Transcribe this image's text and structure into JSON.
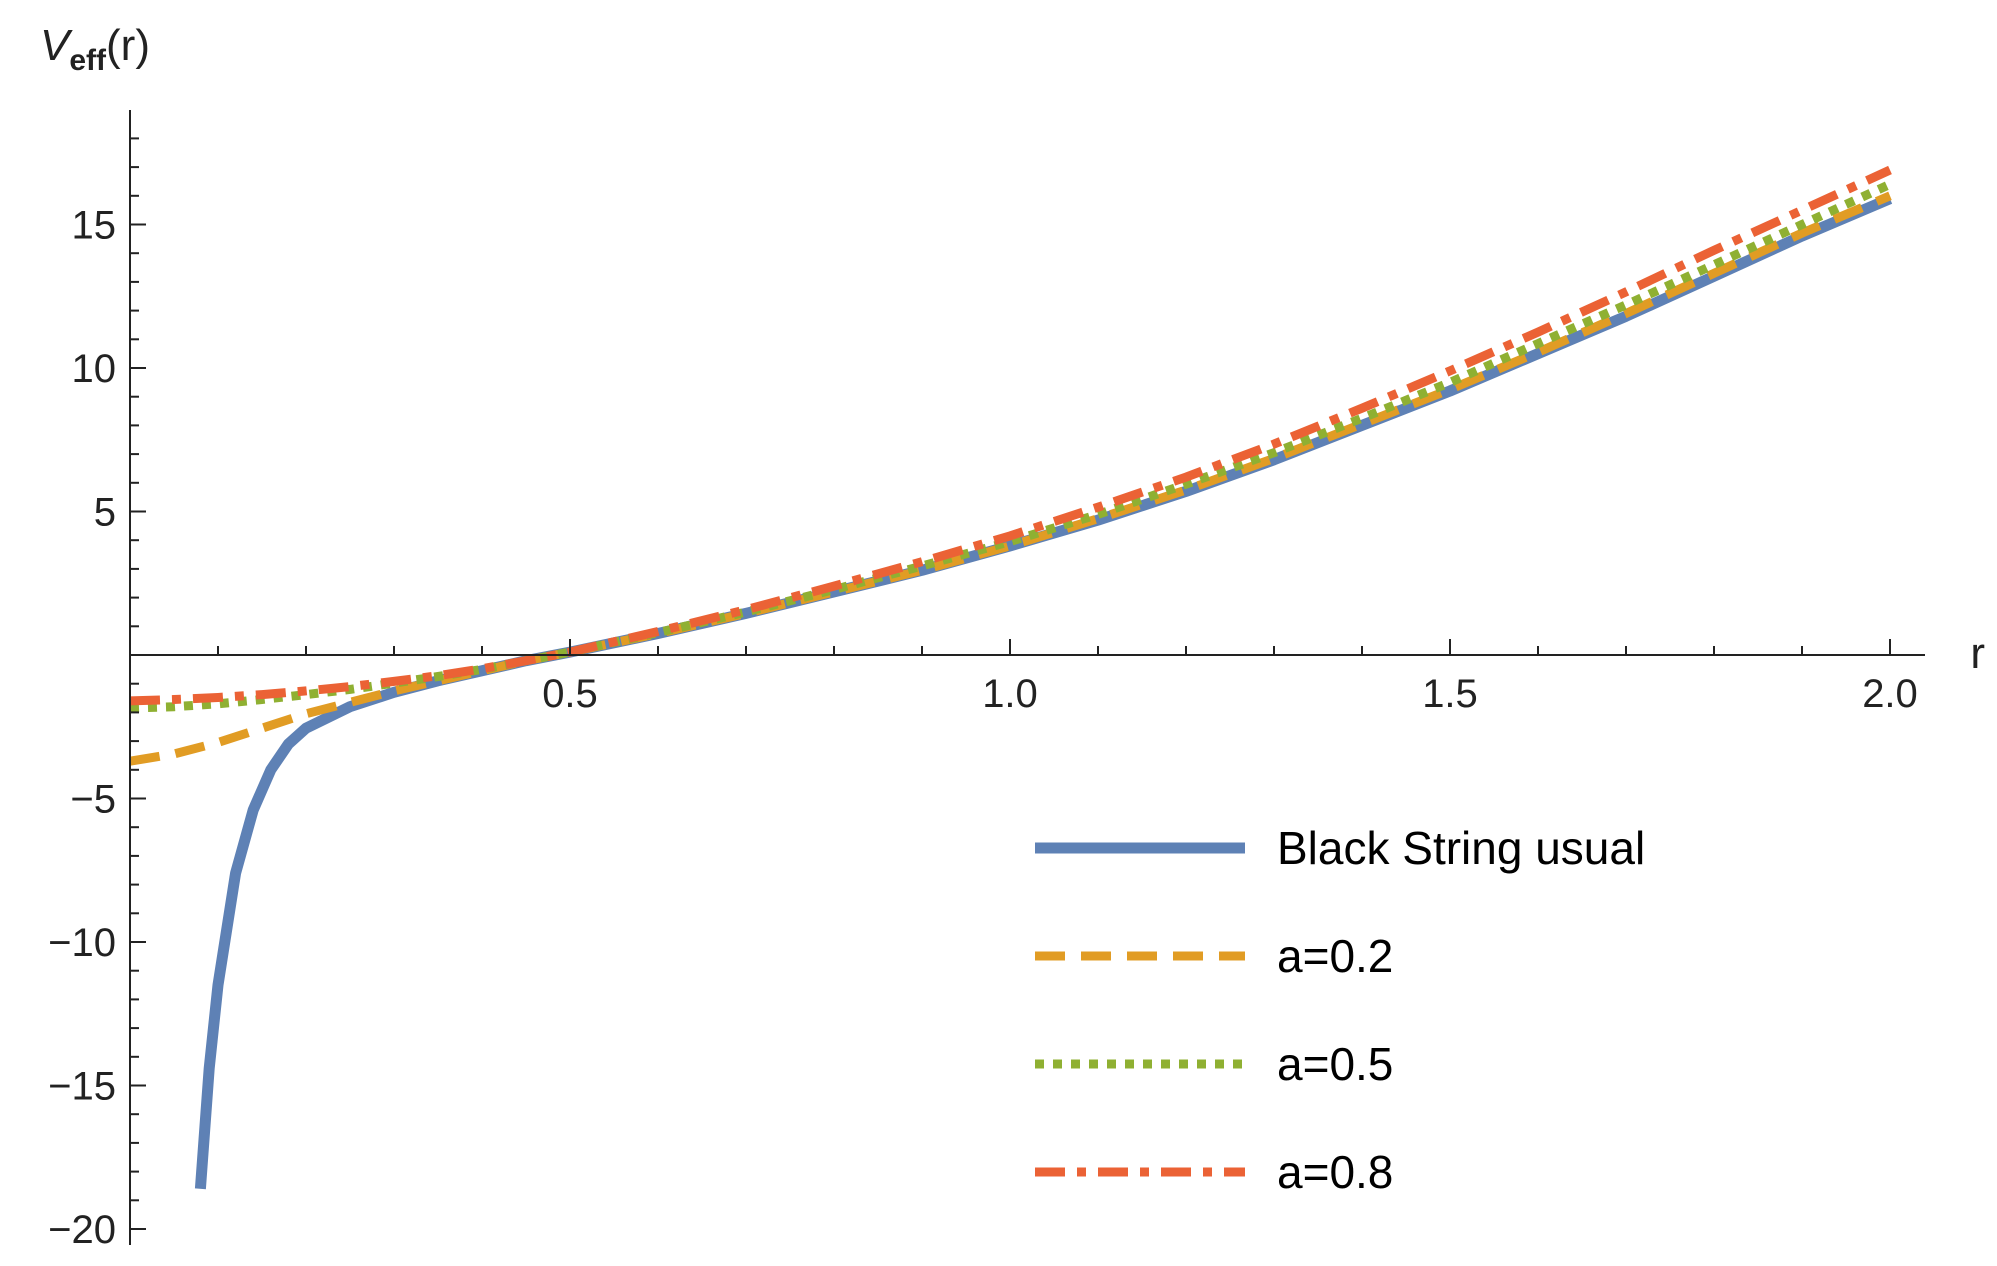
{
  "chart_data": {
    "type": "line",
    "xlabel": "r",
    "ylabel": {
      "base": "V",
      "subscript": "eff",
      "suffix": "(r)"
    },
    "xlim": [
      0.0,
      2.0
    ],
    "ylim": [
      -20,
      18
    ],
    "x_ticks": [
      {
        "value": 0.5,
        "label": "0.5"
      },
      {
        "value": 1.0,
        "label": "1.0"
      },
      {
        "value": 1.5,
        "label": "1.5"
      },
      {
        "value": 2.0,
        "label": "2.0"
      }
    ],
    "y_ticks": [
      {
        "value": -20,
        "label": "−20"
      },
      {
        "value": -15,
        "label": "−15"
      },
      {
        "value": -10,
        "label": "−10"
      },
      {
        "value": -5,
        "label": "−5"
      },
      {
        "value": 5,
        "label": "5"
      },
      {
        "value": 10,
        "label": "10"
      },
      {
        "value": 15,
        "label": "15"
      }
    ],
    "grid": false,
    "legend_position": "bottom-right",
    "series": [
      {
        "name": "Black String usual",
        "color": "#5E81B5",
        "dash": "solid",
        "points": [
          [
            0.08,
            -18.6
          ],
          [
            0.09,
            -14.4
          ],
          [
            0.1,
            -11.5
          ],
          [
            0.12,
            -7.6
          ],
          [
            0.14,
            -5.4
          ],
          [
            0.16,
            -4.0
          ],
          [
            0.18,
            -3.1
          ],
          [
            0.2,
            -2.55
          ],
          [
            0.25,
            -1.8
          ],
          [
            0.3,
            -1.3
          ],
          [
            0.35,
            -0.9
          ],
          [
            0.4,
            -0.55
          ],
          [
            0.45,
            -0.2
          ],
          [
            0.5,
            0.1
          ],
          [
            0.6,
            0.75
          ],
          [
            0.7,
            1.45
          ],
          [
            0.8,
            2.2
          ],
          [
            0.9,
            2.95
          ],
          [
            1.0,
            3.8
          ],
          [
            1.1,
            4.7
          ],
          [
            1.2,
            5.7
          ],
          [
            1.3,
            6.8
          ],
          [
            1.4,
            8.0
          ],
          [
            1.5,
            9.2
          ],
          [
            1.6,
            10.5
          ],
          [
            1.7,
            11.8
          ],
          [
            1.8,
            13.2
          ],
          [
            1.9,
            14.6
          ],
          [
            2.0,
            15.9
          ]
        ]
      },
      {
        "name": "a=0.2",
        "color": "#E19C24",
        "dash": "dashed",
        "points": [
          [
            0.0,
            -3.7
          ],
          [
            0.05,
            -3.45
          ],
          [
            0.1,
            -3.05
          ],
          [
            0.15,
            -2.55
          ],
          [
            0.2,
            -2.05
          ],
          [
            0.25,
            -1.65
          ],
          [
            0.3,
            -1.25
          ],
          [
            0.35,
            -0.9
          ],
          [
            0.4,
            -0.55
          ],
          [
            0.45,
            -0.2
          ],
          [
            0.5,
            0.1
          ],
          [
            0.6,
            0.75
          ],
          [
            0.7,
            1.45
          ],
          [
            0.8,
            2.2
          ],
          [
            0.9,
            2.95
          ],
          [
            1.0,
            3.8
          ],
          [
            1.1,
            4.75
          ],
          [
            1.2,
            5.75
          ],
          [
            1.3,
            6.85
          ],
          [
            1.4,
            8.05
          ],
          [
            1.5,
            9.25
          ],
          [
            1.6,
            10.55
          ],
          [
            1.7,
            11.9
          ],
          [
            1.8,
            13.3
          ],
          [
            1.9,
            14.7
          ],
          [
            2.0,
            16.0
          ]
        ]
      },
      {
        "name": "a=0.5",
        "color": "#8FB032",
        "dash": "dotted",
        "points": [
          [
            0.0,
            -1.85
          ],
          [
            0.05,
            -1.8
          ],
          [
            0.1,
            -1.7
          ],
          [
            0.15,
            -1.55
          ],
          [
            0.2,
            -1.38
          ],
          [
            0.25,
            -1.2
          ],
          [
            0.3,
            -0.98
          ],
          [
            0.35,
            -0.75
          ],
          [
            0.4,
            -0.5
          ],
          [
            0.45,
            -0.2
          ],
          [
            0.5,
            0.1
          ],
          [
            0.6,
            0.78
          ],
          [
            0.7,
            1.5
          ],
          [
            0.8,
            2.28
          ],
          [
            0.9,
            3.1
          ],
          [
            1.0,
            3.95
          ],
          [
            1.1,
            4.9
          ],
          [
            1.2,
            5.95
          ],
          [
            1.3,
            7.05
          ],
          [
            1.4,
            8.25
          ],
          [
            1.5,
            9.5
          ],
          [
            1.6,
            10.85
          ],
          [
            1.7,
            12.2
          ],
          [
            1.8,
            13.6
          ],
          [
            1.9,
            15.0
          ],
          [
            2.0,
            16.4
          ]
        ]
      },
      {
        "name": "a=0.8",
        "color": "#EB6235",
        "dash": "dashdot",
        "points": [
          [
            0.0,
            -1.6
          ],
          [
            0.05,
            -1.55
          ],
          [
            0.1,
            -1.48
          ],
          [
            0.15,
            -1.38
          ],
          [
            0.2,
            -1.25
          ],
          [
            0.25,
            -1.1
          ],
          [
            0.3,
            -0.92
          ],
          [
            0.35,
            -0.72
          ],
          [
            0.4,
            -0.48
          ],
          [
            0.45,
            -0.2
          ],
          [
            0.5,
            0.1
          ],
          [
            0.6,
            0.82
          ],
          [
            0.7,
            1.58
          ],
          [
            0.8,
            2.4
          ],
          [
            0.9,
            3.25
          ],
          [
            1.0,
            4.15
          ],
          [
            1.1,
            5.15
          ],
          [
            1.2,
            6.2
          ],
          [
            1.3,
            7.35
          ],
          [
            1.4,
            8.6
          ],
          [
            1.5,
            9.9
          ],
          [
            1.6,
            11.25
          ],
          [
            1.7,
            12.65
          ],
          [
            1.8,
            14.1
          ],
          [
            1.9,
            15.5
          ],
          [
            2.0,
            16.9
          ]
        ]
      }
    ]
  }
}
